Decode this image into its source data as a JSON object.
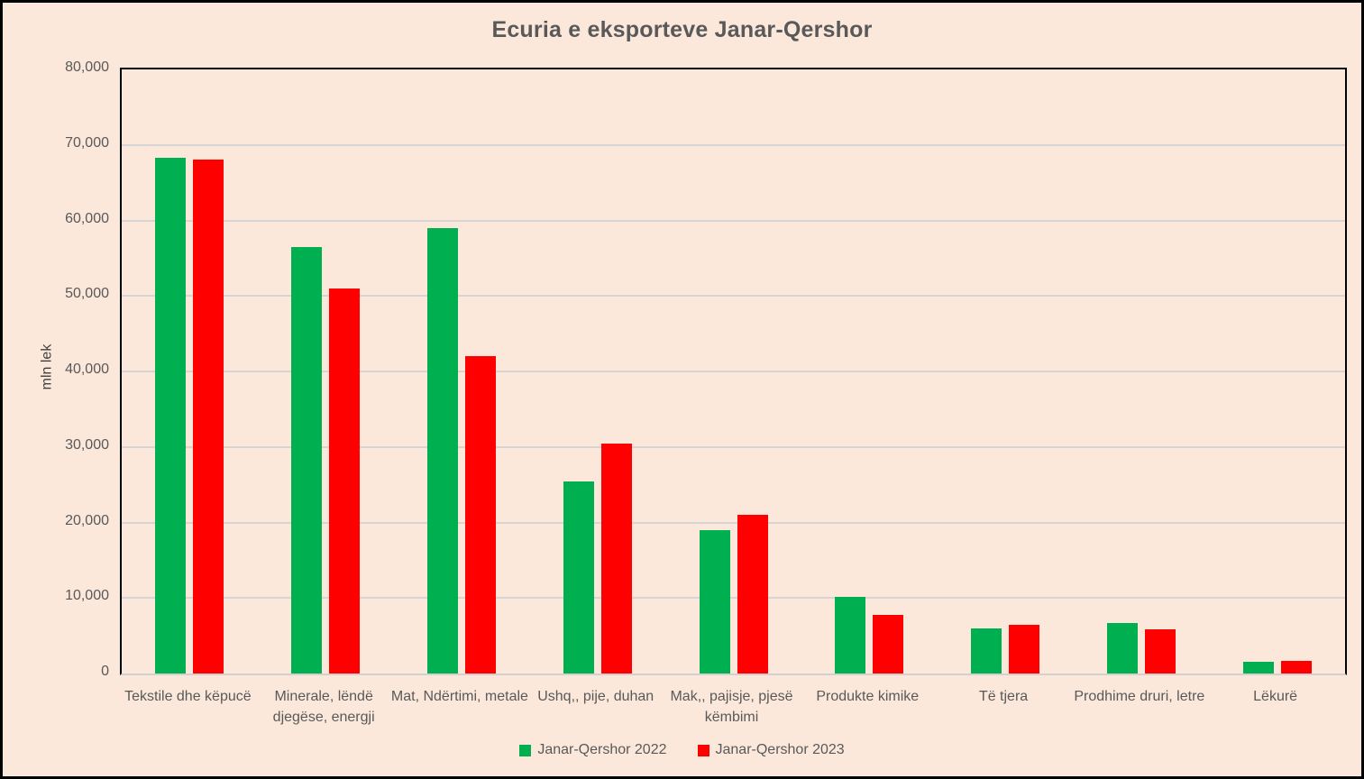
{
  "chart_data": {
    "type": "bar",
    "title": "Ecuria e eksporteve Janar-Qershor",
    "ylabel": "mln lek",
    "ylim": [
      0,
      80000
    ],
    "ytick_step": 10000,
    "ytick_labels": [
      "0",
      "10,000",
      "20,000",
      "30,000",
      "40,000",
      "50,000",
      "60,000",
      "70,000",
      "80,000"
    ],
    "grid": true,
    "legend_position": "bottom",
    "categories": [
      "Tekstile dhe këpucë",
      "Minerale, lëndë djegëse, energji",
      "Mat, Ndërtimi, metale",
      "Ushq,, pije, duhan",
      "Mak,, pajisje, pjesë këmbimi",
      "Produkte kimike",
      "Të tjera",
      "Prodhime druri, letre",
      "Lëkurë"
    ],
    "series": [
      {
        "name": "Janar-Qershor 2022",
        "color": "#00B050",
        "values": [
          68300,
          56500,
          59000,
          25400,
          19000,
          10200,
          6000,
          6700,
          1500
        ]
      },
      {
        "name": "Janar-Qershor 2023",
        "color": "#FF0000",
        "values": [
          68100,
          51000,
          42000,
          30500,
          21000,
          7800,
          6400,
          5900,
          1700
        ]
      }
    ]
  },
  "colors": {
    "background": "#FCE8DB",
    "plot_border": "#000000",
    "gridline": "#D6D4D4",
    "text": "#595959",
    "series_2022": "#00B050",
    "series_2023": "#FF0000"
  }
}
